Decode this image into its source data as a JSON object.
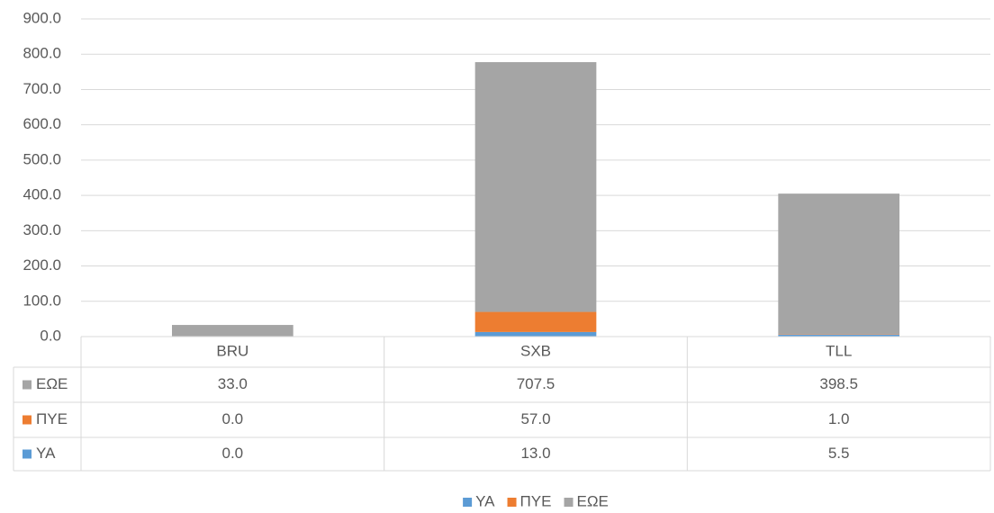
{
  "chart_data": {
    "type": "stacked_bar",
    "categories": [
      "BRU",
      "SXB",
      "TLL"
    ],
    "series": [
      {
        "name": "ΥΑ",
        "color": "#5b9bd5",
        "values": [
          0,
          13,
          5.5
        ],
        "value_labels": [
          "0.0",
          "13.0",
          "5.5"
        ]
      },
      {
        "name": "ΠΥΕ",
        "color": "#ed7d31",
        "values": [
          0,
          57,
          1
        ],
        "value_labels": [
          "0.0",
          "57.0",
          "1.0"
        ]
      },
      {
        "name": "ΕΩΕ",
        "color": "#a5a5a5",
        "values": [
          33,
          707.5,
          398.5
        ],
        "value_labels": [
          "33.0",
          "707.5",
          "398.5"
        ]
      }
    ],
    "ylim": [
      0,
      900
    ],
    "yticks": [
      {
        "value": 0,
        "label": "0.0"
      },
      {
        "value": 100,
        "label": "100.0"
      },
      {
        "value": 200,
        "label": "200.0"
      },
      {
        "value": 300,
        "label": "300.0"
      },
      {
        "value": 400,
        "label": "400.0"
      },
      {
        "value": 500,
        "label": "500.0"
      },
      {
        "value": 600,
        "label": "600.0"
      },
      {
        "value": 700,
        "label": "700.0"
      },
      {
        "value": 800,
        "label": "800.0"
      },
      {
        "value": 900,
        "label": "900.0"
      }
    ],
    "grid": true,
    "data_table": true,
    "legend": "bottom"
  }
}
